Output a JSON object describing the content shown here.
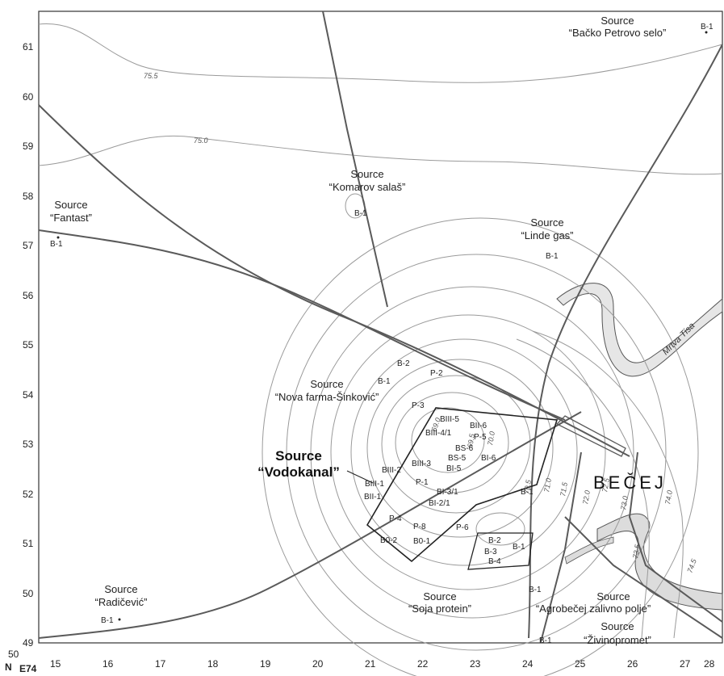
{
  "axes": {
    "y_ticks": [
      "61",
      "60",
      "59",
      "58",
      "57",
      "56",
      "55",
      "54",
      "53",
      "52",
      "51",
      "50",
      "49"
    ],
    "x_ticks": [
      "15",
      "16",
      "17",
      "18",
      "19",
      "20",
      "21",
      "22",
      "23",
      "24",
      "25",
      "26",
      "27",
      "28"
    ],
    "corner_n": "N",
    "corner_50": "50",
    "corner_e74": "E74"
  },
  "sources": {
    "backo_petrovo": {
      "title": "Source",
      "name": "“Bačko Petrovo selo”",
      "well": "B-1"
    },
    "komarov": {
      "title": "Source",
      "name": "“Komarov salaš”",
      "well": "B-1"
    },
    "fantast": {
      "title": "Source",
      "name": "“Fantast”",
      "well": "B-1"
    },
    "linde": {
      "title": "Source",
      "name": "“Linde gas”",
      "well": "B-1"
    },
    "nova_farma": {
      "title": "Source",
      "name": "“Nova farma-Šinković”",
      "well": "B-1"
    },
    "vodokanal": {
      "title": "Source",
      "name": "“Vodokanal”"
    },
    "soja": {
      "title": "Source",
      "name": "“Soja protein”"
    },
    "agrobecej": {
      "title": "Source",
      "name": "“Agrobečej zalivno polje”",
      "well": "B-1"
    },
    "radicevic": {
      "title": "Source",
      "name": "“Radičević”",
      "well": "B-1"
    },
    "zivinopromet": {
      "title": "Source",
      "name": "“Živinopromet”",
      "well": "B-1"
    }
  },
  "wells": [
    "B-2",
    "P-2",
    "P-3",
    "BIII-5",
    "BIII-4/1",
    "BII-6",
    "P-5",
    "BS-6",
    "BS-5",
    "BI-6",
    "BIII-3",
    "BI-5",
    "BIII-2",
    "P-1",
    "BIII-1",
    "BI-3/1",
    "BII-1",
    "BI-2/1",
    "P-4",
    "P-8",
    "P-6",
    "B0-2",
    "B0-1",
    "B-1",
    "B-2",
    "B-3",
    "B-1",
    "B-4"
  ],
  "isolines": [
    "75.5",
    "75.0",
    "69.0",
    "69.5",
    "70.0",
    "70.5",
    "71.0",
    "71.5",
    "72.0",
    "72.5",
    "73.0",
    "73.5",
    "74.0",
    "74.5"
  ],
  "town": "BEČEJ",
  "river": "Mrtva Tisa",
  "colors": {
    "contour": "#9a9a9a",
    "road": "#5a5a5a",
    "river_fill": "#dcdcdc",
    "boundary": "#222222"
  }
}
